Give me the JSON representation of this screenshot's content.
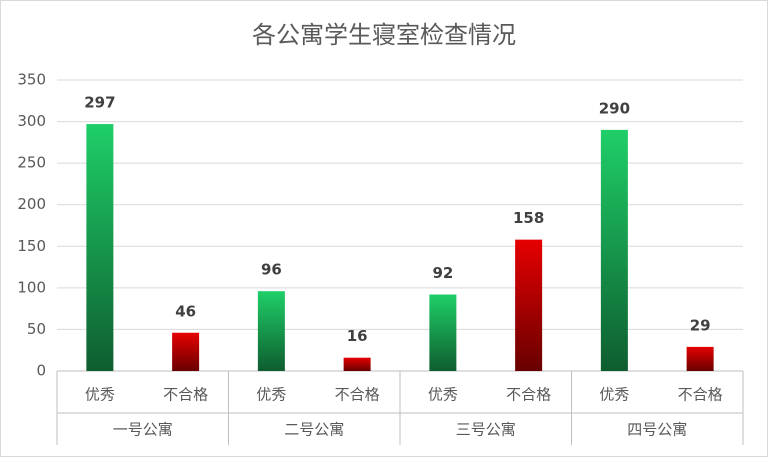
{
  "chart_data": {
    "type": "bar",
    "title": "各公寓学生寝室检查情况",
    "categories": [
      "一号公寓",
      "二号公寓",
      "三号公寓",
      "四号公寓"
    ],
    "series": [
      {
        "name": "优秀",
        "color": "#1fcf68",
        "values": [
          297,
          96,
          92,
          290
        ]
      },
      {
        "name": "不合格",
        "color": "#e60000",
        "values": [
          46,
          16,
          158,
          29
        ]
      }
    ],
    "ylim": [
      0,
      350
    ],
    "yticks": [
      0,
      50,
      100,
      150,
      200,
      250,
      300,
      350
    ],
    "grid": true
  }
}
